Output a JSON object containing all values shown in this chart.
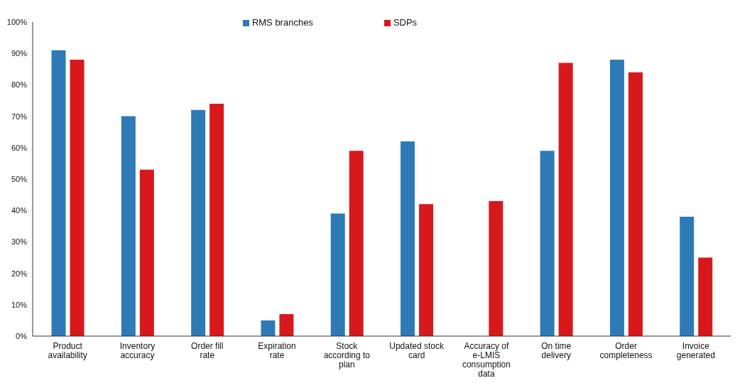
{
  "chart_data": {
    "type": "bar",
    "categories": [
      "Product availability",
      "Inventory accuracy",
      "Order fill rate",
      "Expiration rate",
      "Stock according to plan",
      "Updated stock card",
      "Accuracy of e-LMIS consumption data",
      "On time delivery",
      "Order completeness",
      "Invoice generated"
    ],
    "series": [
      {
        "name": "RMS branches",
        "color": "#2e7ab6",
        "values": [
          91,
          70,
          72,
          5,
          39,
          62,
          null,
          59,
          88,
          38
        ]
      },
      {
        "name": "SDPs",
        "color": "#d7191c",
        "values": [
          88,
          53,
          74,
          7,
          59,
          42,
          43,
          87,
          84,
          25
        ]
      }
    ],
    "ylim": [
      0,
      100
    ],
    "yticks": [
      {
        "value": 0,
        "label": "0%"
      },
      {
        "value": 10,
        "label": "10%"
      },
      {
        "value": 20,
        "label": "20%"
      },
      {
        "value": 30,
        "label": "30%"
      },
      {
        "value": 40,
        "label": "40%"
      },
      {
        "value": 50,
        "label": "50%"
      },
      {
        "value": 60,
        "label": "60%"
      },
      {
        "value": 70,
        "label": "70%"
      },
      {
        "value": 80,
        "label": "80%"
      },
      {
        "value": 90,
        "label": "90%"
      },
      {
        "value": 100,
        "label": "100%"
      }
    ],
    "grid": false,
    "legend": "top"
  }
}
